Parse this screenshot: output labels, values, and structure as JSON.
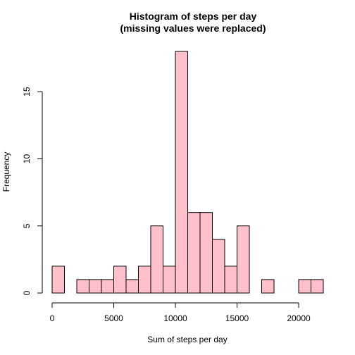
{
  "chart_data": {
    "type": "bar",
    "title_lines": [
      "Histogram of steps per day",
      "(missing values were replaced)"
    ],
    "xlabel": "Sum of steps per day",
    "ylabel": "Frequency",
    "bin_width": 1000,
    "bin_starts": [
      0,
      1000,
      2000,
      3000,
      4000,
      5000,
      6000,
      7000,
      8000,
      9000,
      10000,
      11000,
      12000,
      13000,
      14000,
      15000,
      16000,
      17000,
      18000,
      19000,
      20000,
      21000
    ],
    "values": [
      2,
      0,
      1,
      1,
      1,
      2,
      1,
      2,
      5,
      2,
      18,
      6,
      6,
      4,
      2,
      5,
      0,
      1,
      0,
      0,
      1,
      1
    ],
    "xlim": [
      0,
      22000
    ],
    "ylim": [
      0,
      18
    ],
    "x_ticks": [
      0,
      5000,
      10000,
      15000,
      20000
    ],
    "x_tick_labels": [
      "0",
      "5000",
      "10000",
      "15000",
      "20000"
    ],
    "y_ticks": [
      0,
      5,
      10,
      15
    ],
    "y_tick_labels": [
      "0",
      "5",
      "10",
      "15"
    ],
    "bar_fill": "#ffc0cb",
    "bar_stroke": "#000000",
    "grid": false
  }
}
